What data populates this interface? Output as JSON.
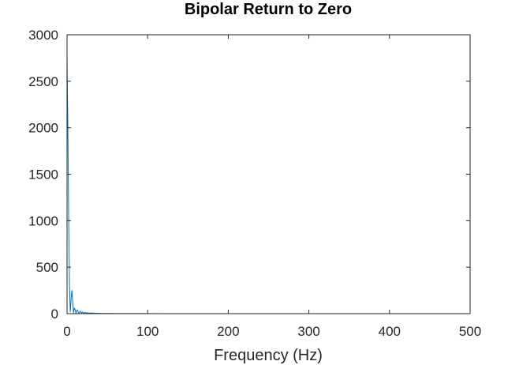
{
  "chart_data": {
    "type": "line",
    "title": "Bipolar Return to Zero",
    "xlabel": "Frequency (Hz)",
    "ylabel": "",
    "xlim": [
      0,
      500
    ],
    "ylim": [
      0,
      3000
    ],
    "xticks": [
      0,
      100,
      200,
      300,
      400,
      500
    ],
    "yticks": [
      0,
      500,
      1000,
      1500,
      2000,
      2500,
      3000
    ],
    "grid": false,
    "series_color": "#0072BD",
    "series": [
      {
        "x": [
          0,
          1,
          2,
          3,
          4,
          5,
          6,
          7,
          8,
          9,
          10,
          11,
          12,
          13,
          14,
          15,
          16,
          17,
          18,
          19,
          20,
          21,
          22,
          23,
          24,
          25,
          26,
          27,
          28,
          30,
          32,
          34,
          36,
          38,
          40,
          42,
          44,
          46,
          48,
          50,
          55,
          60,
          65,
          70,
          80,
          90,
          100,
          120,
          150,
          200,
          300,
          400,
          500
        ],
        "y": [
          2780,
          2000,
          1050,
          320,
          20,
          150,
          250,
          130,
          10,
          60,
          45,
          5,
          30,
          40,
          15,
          5,
          25,
          20,
          5,
          18,
          12,
          4,
          14,
          10,
          3,
          10,
          8,
          3,
          8,
          6,
          5,
          4,
          4,
          3,
          3,
          3,
          2,
          2,
          2,
          2,
          2,
          1,
          1,
          1,
          1,
          1,
          1,
          0,
          0,
          0,
          0,
          0,
          0
        ]
      }
    ]
  }
}
